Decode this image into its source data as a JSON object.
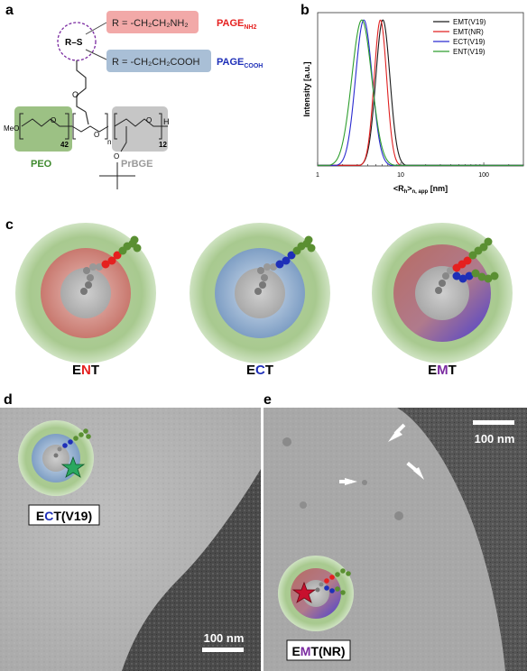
{
  "panels": {
    "a": "a",
    "b": "b",
    "c": "c",
    "d": "d",
    "e": "e"
  },
  "panel_a": {
    "rs_label": "R–S",
    "r_amine": "R = -CH₂CH₂NH₂",
    "page_nh2_main": "PAGE",
    "page_nh2_sub": "NH2",
    "r_acid": "R = -CH₂CH₂COOH",
    "page_cooh_main": "PAGE",
    "page_cooh_sub": "COOH",
    "meo": "MeO",
    "n42": "42",
    "n_small": "n",
    "n12": "12",
    "h": "H",
    "peo": "PEO",
    "prbge": "PrBGE",
    "colors": {
      "amine_box": "#f2a9a8",
      "acid_box": "#a9bfd6",
      "peo_box": "#9cc184",
      "prbge_box": "#c6c6c6",
      "red": "#e5201f",
      "blue": "#1e2fb8",
      "green": "#3f8a2e",
      "gray": "#9a9a9a"
    }
  },
  "chart_data": {
    "type": "line",
    "ylabel": "Intensity [a.u.]",
    "xlabel": "<Rh>n, app [nm]",
    "xlabel_main": "<R",
    "xlabel_sub1": "h",
    "xlabel_mid": ">",
    "xlabel_sub2": "n, app",
    "xlabel_unit": " [nm]",
    "x_scale": "log",
    "xlim": [
      1,
      300
    ],
    "ylim": [
      0,
      1.05
    ],
    "x_ticks": [
      1,
      10,
      100
    ],
    "x_tick_labels": [
      "1",
      "10",
      "100"
    ],
    "legend_position": "top-right",
    "series": [
      {
        "name": "EMT(V19)",
        "color": "#1a1a1a",
        "peak": 6.1,
        "width": 0.085
      },
      {
        "name": "EMT(NR)",
        "color": "#e02020",
        "peak": 5.7,
        "width": 0.075
      },
      {
        "name": "ECT(V19)",
        "color": "#2a2ad0",
        "peak": 3.6,
        "width": 0.1
      },
      {
        "name": "ENT(V19)",
        "color": "#2e9e2e",
        "peak": 3.4,
        "width": 0.12
      }
    ]
  },
  "panel_c": {
    "labels": [
      {
        "e": "E",
        "mid": "N",
        "t": "T",
        "mid_color": "#e5201f"
      },
      {
        "e": "E",
        "mid": "C",
        "t": "T",
        "mid_color": "#1e2fb8"
      },
      {
        "e": "E",
        "mid": "M",
        "t": "T",
        "mid_color": "#7a2aa0"
      }
    ]
  },
  "panel_d": {
    "label_e": "E",
    "label_c": "C",
    "label_rest": "T(V19)",
    "scalebar": "100 nm"
  },
  "panel_e": {
    "label_e": "E",
    "label_m": "M",
    "label_rest": "T(NR)",
    "scalebar": "100 nm"
  }
}
